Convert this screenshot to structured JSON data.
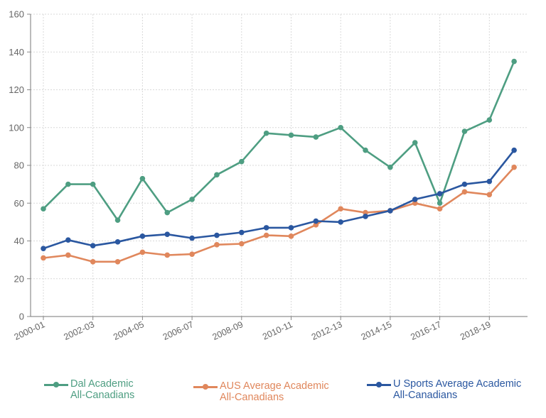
{
  "chart_data": {
    "type": "line",
    "title": "",
    "xlabel": "",
    "ylabel": "",
    "ylim": [
      0,
      160
    ],
    "yticks": [
      0,
      20,
      40,
      60,
      80,
      100,
      120,
      140,
      160
    ],
    "x": [
      "2000-01",
      "2001-02",
      "2002-03",
      "2003-04",
      "2004-05",
      "2005-06",
      "2006-07",
      "2007-08",
      "2008-09",
      "2009-10",
      "2010-11",
      "2011-12",
      "2012-13",
      "2013-14",
      "2014-15",
      "2015-16",
      "2016-17",
      "2017-18",
      "2018-19",
      "2019-20"
    ],
    "xticks_shown": [
      "2000-01",
      "2002-03",
      "2004-05",
      "2006-07",
      "2008-09",
      "2010-11",
      "2012-13",
      "2014-15",
      "2016-17",
      "2018-19"
    ],
    "grid": true,
    "legend_position": "bottom",
    "series": [
      {
        "name": "Dal Academic All-Canadians",
        "legend_lines": [
          "Dal Academic",
          "All-Canadians"
        ],
        "color": "#4e9e82",
        "values": [
          57,
          70,
          70,
          51,
          73,
          55,
          62,
          75,
          82,
          97,
          96,
          95,
          100,
          88,
          79,
          92,
          60,
          98,
          104,
          135
        ]
      },
      {
        "name": "AUS Average Academic All-Canadians",
        "legend_lines": [
          "AUS Average Academic",
          "All-Canadians"
        ],
        "color": "#e0875c",
        "values": [
          31,
          32.5,
          29,
          29,
          34,
          32.5,
          33,
          38,
          38.5,
          43,
          42.5,
          48.5,
          57,
          55,
          56,
          60,
          57,
          66,
          64.5,
          79
        ]
      },
      {
        "name": "U Sports Average Academic All-Canadians",
        "legend_lines": [
          "U Sports Average Academic",
          "All-Canadians"
        ],
        "color": "#2a57a0",
        "values": [
          36,
          40.5,
          37.5,
          39.5,
          42.5,
          43.5,
          41.5,
          43,
          44.5,
          47,
          47,
          50.5,
          50,
          53,
          56,
          62,
          65,
          70,
          71.5,
          88
        ]
      }
    ]
  }
}
